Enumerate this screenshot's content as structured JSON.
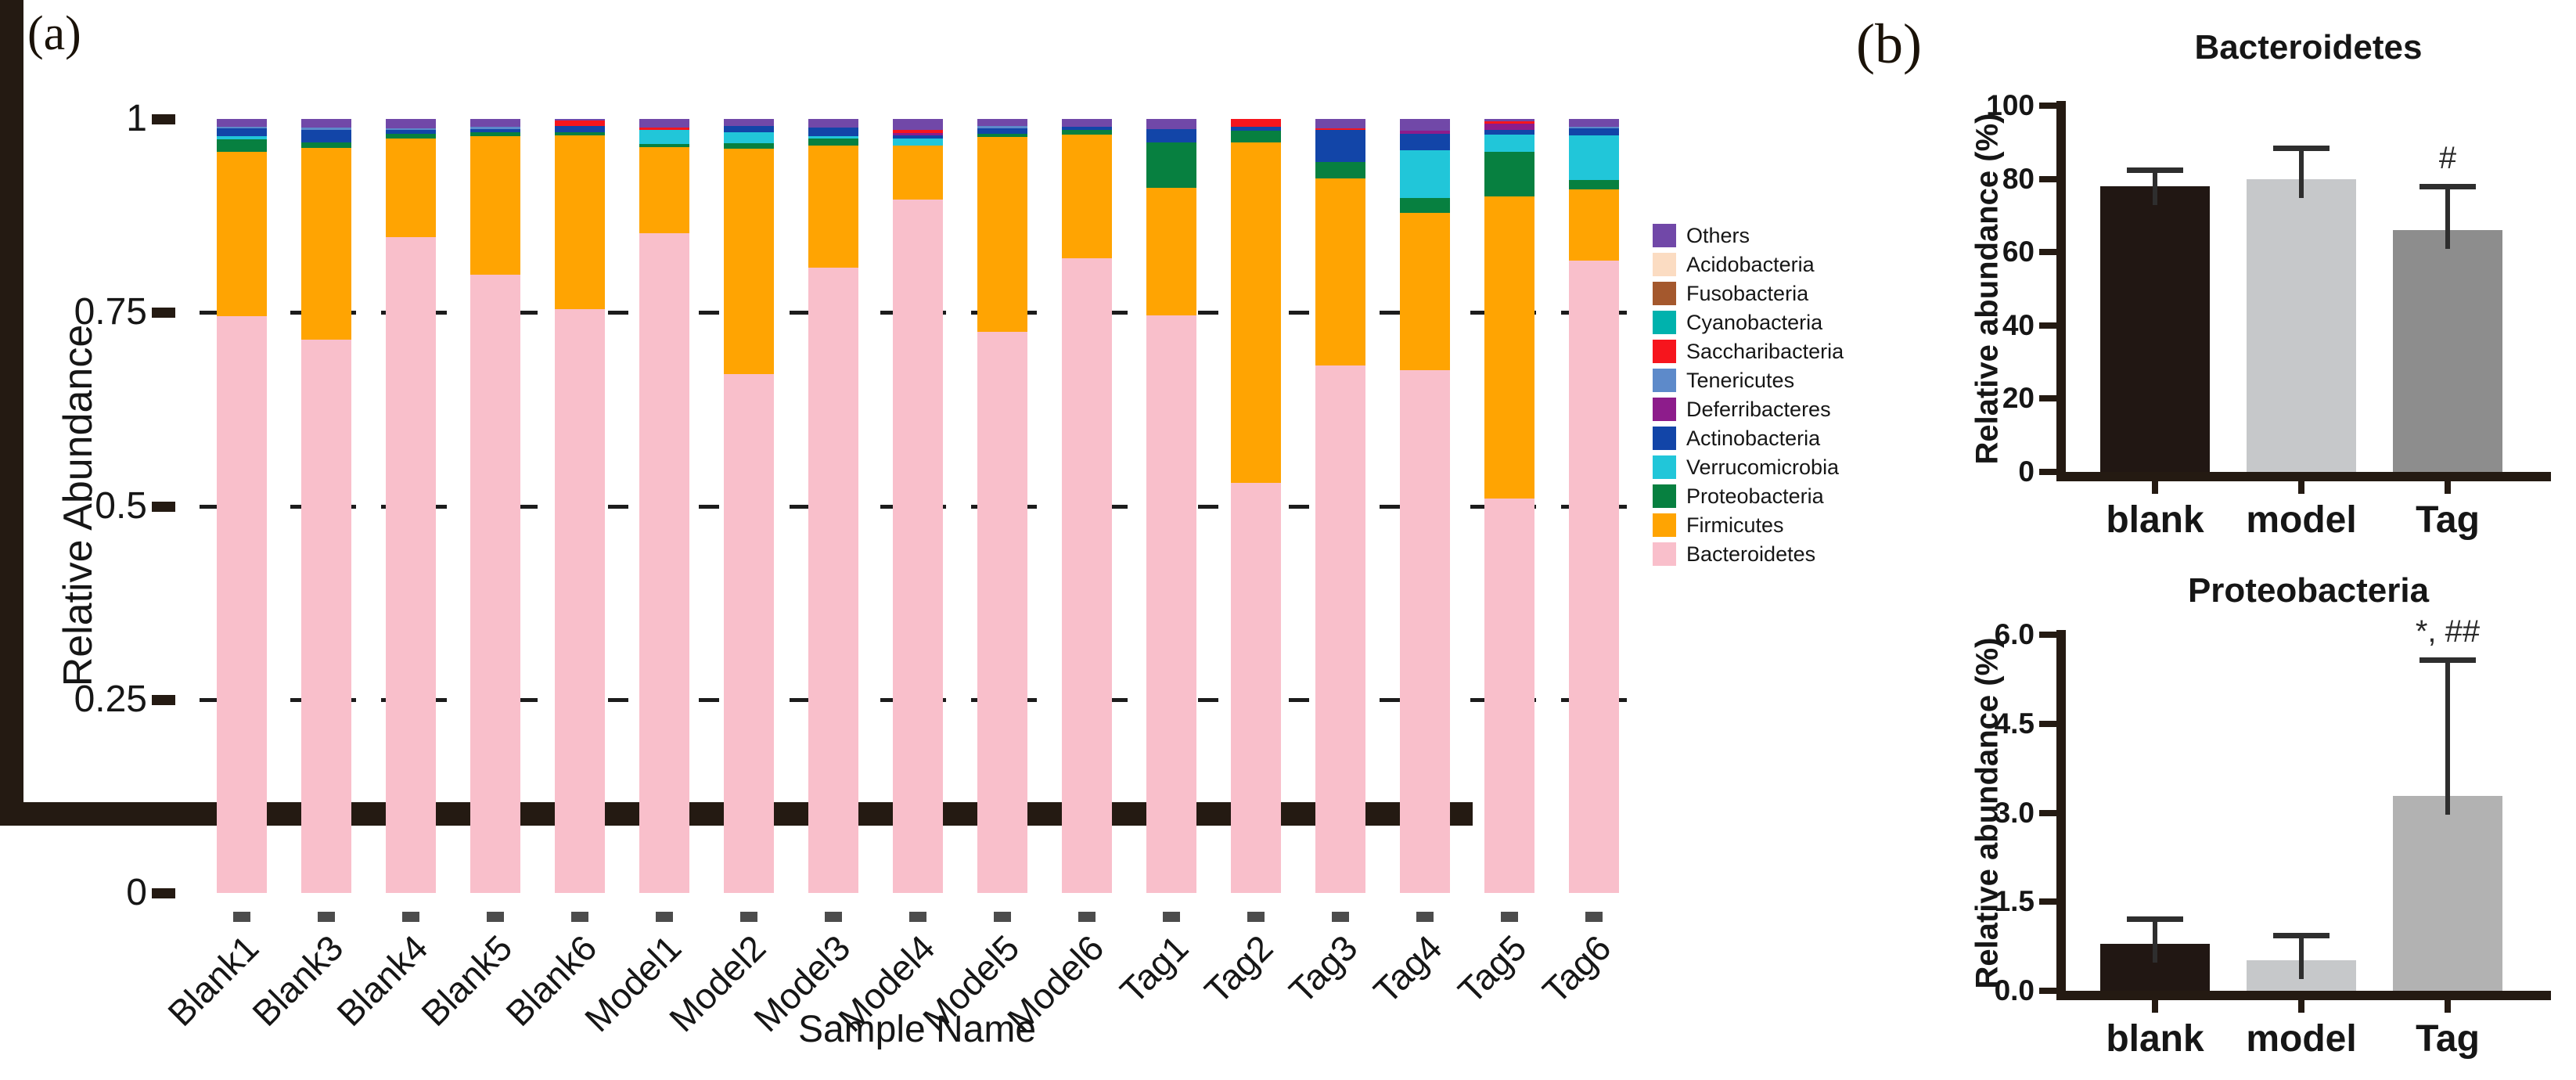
{
  "panel_a": {
    "label": "(a)",
    "ylabel": "Relative Abundance",
    "xlabel": "Sample Name"
  },
  "panel_b": {
    "label": "(b)"
  },
  "chart_data": [
    {
      "id": "phylum-stacked-bars",
      "type": "bar",
      "subtype": "stacked",
      "title": "",
      "xlabel": "Sample Name",
      "ylabel": "Relative Abundance",
      "ylim": [
        0,
        1
      ],
      "ytick_values": [
        0,
        0.25,
        0.5,
        0.75,
        1
      ],
      "ytick_labels": [
        "0",
        "0.25",
        "0.5",
        "0.75",
        "1"
      ],
      "grid": "dashed-horizontal-at-0.25-0.5-0.75",
      "legend_position": "right",
      "categories": [
        "Blank1",
        "Blank3",
        "Blank4",
        "Blank5",
        "Blank6",
        "Model1",
        "Model2",
        "Model3",
        "Model4",
        "Model5",
        "Model6",
        "Tag1",
        "Tag2",
        "Tag3",
        "Tag4",
        "Tag5",
        "Tag6"
      ],
      "stack_order_bottom_to_top": [
        "Bacteroidetes",
        "Firmicutes",
        "Proteobacteria",
        "Verrucomicrobia",
        "Actinobacteria",
        "Deferribacteres",
        "Tenericutes",
        "Saccharibacteria",
        "Cyanobacteria",
        "Fusobacteria",
        "Acidobacteria",
        "Others"
      ],
      "series": [
        {
          "name": "Others",
          "color": "#7148a8",
          "values": [
            0.01,
            0.011,
            0.012,
            0.01,
            0.002,
            0.011,
            0.009,
            0.011,
            0.014,
            0.009,
            0.01,
            0.013,
            0,
            0.012,
            0.015,
            0.003,
            0.01
          ]
        },
        {
          "name": "Acidobacteria",
          "color": "#fbdcc2",
          "values": [
            0,
            0,
            0,
            0,
            0,
            0,
            0,
            0,
            0,
            0,
            0,
            0,
            0,
            0,
            0,
            0,
            0
          ]
        },
        {
          "name": "Fusobacteria",
          "color": "#a4582d",
          "values": [
            0,
            0,
            0,
            0,
            0,
            0,
            0,
            0,
            0,
            0,
            0,
            0,
            0,
            0,
            0,
            0,
            0
          ]
        },
        {
          "name": "Cyanobacteria",
          "color": "#00b2ad",
          "values": [
            0,
            0,
            0,
            0,
            0,
            0,
            0,
            0,
            0,
            0,
            0,
            0,
            0,
            0,
            0,
            0,
            0
          ]
        },
        {
          "name": "Saccharibacteria",
          "color": "#f6151d",
          "values": [
            0,
            0,
            0,
            0,
            0.007,
            0.003,
            0,
            0,
            0.004,
            0,
            0,
            0,
            0.01,
            0.002,
            0,
            0.003,
            0
          ]
        },
        {
          "name": "Tenericutes",
          "color": "#5d8aca",
          "values": [
            0.002,
            0.003,
            0.002,
            0.003,
            0,
            0,
            0,
            0,
            0,
            0.003,
            0,
            0,
            0,
            0,
            0,
            0,
            0.002
          ]
        },
        {
          "name": "Deferribacteres",
          "color": "#8d1c8b",
          "values": [
            0,
            0,
            0,
            0,
            0,
            0,
            0,
            0,
            0.003,
            0,
            0,
            0,
            0,
            0,
            0.004,
            0.008,
            0
          ]
        },
        {
          "name": "Actinobacteria",
          "color": "#1245a8",
          "values": [
            0.01,
            0.016,
            0.005,
            0.004,
            0.008,
            0,
            0.008,
            0.011,
            0.004,
            0.007,
            0.004,
            0.017,
            0.005,
            0.042,
            0.021,
            0.006,
            0.009
          ]
        },
        {
          "name": "Verrucomicrobia",
          "color": "#21c6d9",
          "values": [
            0.004,
            0,
            0,
            0,
            0,
            0.018,
            0.014,
            0.003,
            0.009,
            0,
            0,
            0,
            0,
            0,
            0.062,
            0.022,
            0.058
          ]
        },
        {
          "name": "Proteobacteria",
          "color": "#078040",
          "values": [
            0.016,
            0.007,
            0.006,
            0.005,
            0.004,
            0.004,
            0.007,
            0.009,
            0,
            0.004,
            0.006,
            0.059,
            0.015,
            0.021,
            0.019,
            0.058,
            0.012
          ]
        },
        {
          "name": "Firmicutes",
          "color": "#ffa402",
          "values": [
            0.213,
            0.248,
            0.128,
            0.179,
            0.225,
            0.112,
            0.292,
            0.158,
            0.07,
            0.252,
            0.16,
            0.165,
            0.44,
            0.241,
            0.204,
            0.39,
            0.092
          ]
        },
        {
          "name": "Bacteroidetes",
          "color": "#f9bfcb",
          "values": [
            0.745,
            0.715,
            0.847,
            0.799,
            0.754,
            0.852,
            0.67,
            0.808,
            0.896,
            0.725,
            0.82,
            0.746,
            0.53,
            0.682,
            0.675,
            0.51,
            0.817
          ]
        }
      ]
    },
    {
      "id": "bacteroidetes-group-bars",
      "type": "bar",
      "title": "Bacteroidetes",
      "ylabel": "Relative abundance (%)",
      "ylim": [
        0,
        100
      ],
      "ytick_values": [
        0,
        20,
        40,
        60,
        80,
        100
      ],
      "ytick_labels": [
        "0",
        "20",
        "40",
        "60",
        "80",
        "100"
      ],
      "categories": [
        "blank",
        "model",
        "Tag"
      ],
      "values": [
        78,
        80,
        66
      ],
      "errors_plus": [
        4.5,
        8.5,
        12
      ],
      "bar_colors": [
        "#211713",
        "#c6c8ca",
        "#8d8d8d"
      ],
      "annotations": [
        "",
        "",
        "#"
      ]
    },
    {
      "id": "proteobacteria-group-bars",
      "type": "bar",
      "title": "Proteobacteria",
      "ylabel": "Relative abundance (%)",
      "ylim": [
        0,
        6
      ],
      "ytick_values": [
        0,
        1.5,
        3.0,
        4.5,
        6.0
      ],
      "ytick_labels": [
        "0.0",
        "1.5",
        "3.0",
        "4.5",
        "6.0"
      ],
      "categories": [
        "blank",
        "model",
        "Tag"
      ],
      "values": [
        0.79,
        0.51,
        3.28
      ],
      "errors_plus": [
        0.42,
        0.43,
        2.3
      ],
      "bar_colors": [
        "#211713",
        "#c6c8ca",
        "#b2b2b2"
      ],
      "annotations": [
        "",
        "",
        "*, ##"
      ]
    }
  ],
  "colors": {
    "axis": "#241a12",
    "gridline": "#1c1c1c",
    "minor_tick": "#4c4c4c",
    "error_bar": "#2e2e2e"
  }
}
